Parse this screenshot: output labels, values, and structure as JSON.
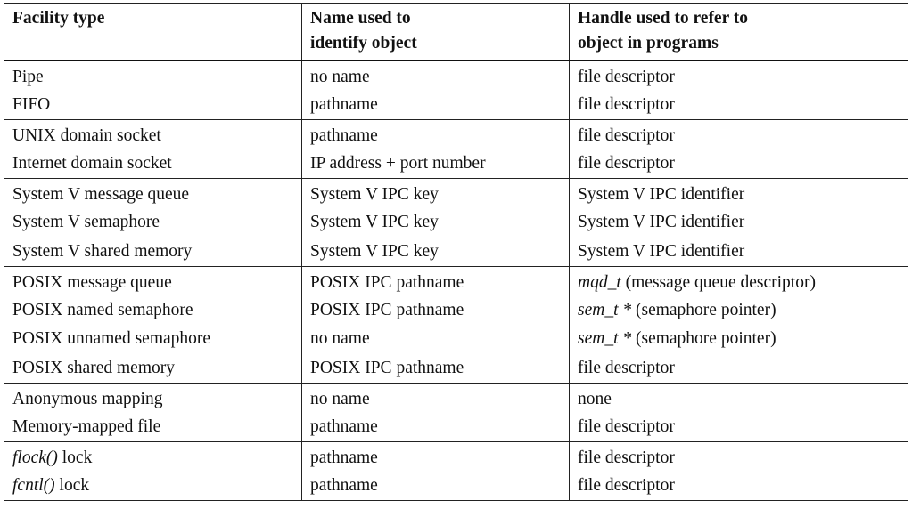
{
  "headers": [
    "Facility type",
    "Name used to\nidentify object",
    "Handle used to refer to\nobject in programs"
  ],
  "groups": [
    {
      "rows": [
        {
          "facility": "Pipe",
          "name": "no name",
          "handle": "file descriptor"
        },
        {
          "facility": "FIFO",
          "name": "pathname",
          "handle": "file descriptor"
        }
      ]
    },
    {
      "rows": [
        {
          "facility": "UNIX domain socket",
          "name": "pathname",
          "handle": "file descriptor"
        },
        {
          "facility": "Internet domain socket",
          "name": "IP address + port number",
          "handle": "file descriptor"
        }
      ]
    },
    {
      "rows": [
        {
          "facility": "System V message queue",
          "name": "System V IPC key",
          "handle": "System V IPC identifier"
        },
        {
          "facility": "System V semaphore",
          "name": "System V IPC key",
          "handle": "System V IPC identifier"
        },
        {
          "facility": "System V shared memory",
          "name": "System V IPC key",
          "handle": "System V IPC identifier"
        }
      ]
    },
    {
      "rows": [
        {
          "facility": "POSIX message queue",
          "name": "POSIX IPC pathname",
          "handle_italic": "mqd_t",
          "handle": " (message queue descriptor)"
        },
        {
          "facility": "POSIX named semaphore",
          "name": "POSIX IPC pathname",
          "handle_italic": "sem_t *",
          "handle": " (semaphore pointer)"
        },
        {
          "facility": "POSIX unnamed semaphore",
          "name": "no name",
          "handle_italic": "sem_t *",
          "handle": " (semaphore pointer)"
        },
        {
          "facility": "POSIX shared memory",
          "name": "POSIX IPC pathname",
          "handle": "file descriptor"
        }
      ]
    },
    {
      "rows": [
        {
          "facility": "Anonymous mapping",
          "name": "no name",
          "handle": "none"
        },
        {
          "facility": "Memory-mapped file",
          "name": "pathname",
          "handle": "file descriptor"
        }
      ]
    },
    {
      "rows": [
        {
          "facility_italic": "flock()",
          "facility": " lock",
          "name": "pathname",
          "handle": "file descriptor"
        },
        {
          "facility_italic": "fcntl()",
          "facility": " lock",
          "name": "pathname",
          "handle": "file descriptor"
        }
      ]
    }
  ]
}
